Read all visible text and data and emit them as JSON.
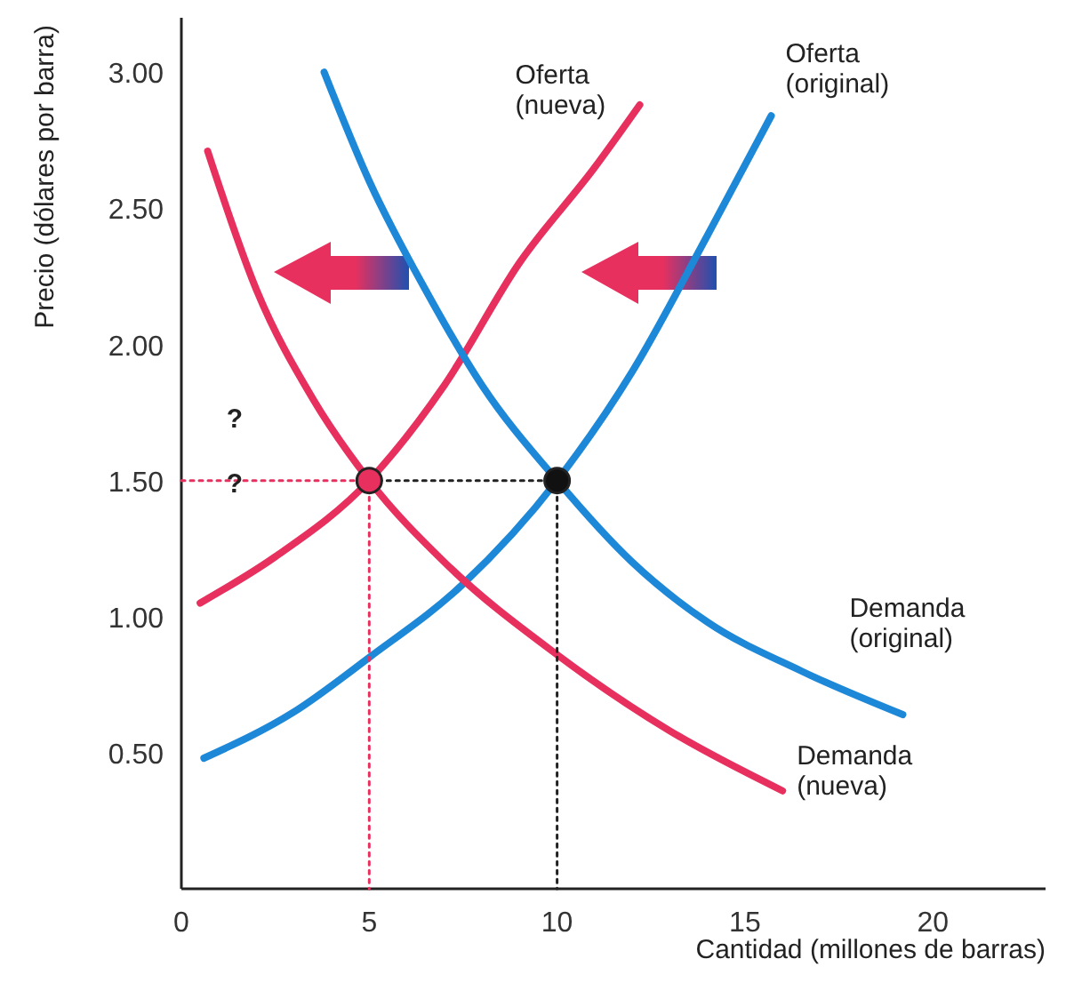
{
  "chart_data": {
    "type": "line",
    "xlabel": "Cantidad (millones de barras)",
    "ylabel": "Precio (dólares por barra)",
    "xlim": [
      0,
      23
    ],
    "ylim": [
      0,
      3.2
    ],
    "xticks": [
      0,
      5,
      10,
      15,
      20
    ],
    "yticks": [
      {
        "value": 0.5,
        "label": "0.50"
      },
      {
        "value": 1,
        "label": "1.00"
      },
      {
        "value": 1.5,
        "label": "1.50"
      },
      {
        "value": 2,
        "label": "2.00"
      },
      {
        "value": 2.5,
        "label": "2.50"
      },
      {
        "value": 3,
        "label": "3.00"
      }
    ],
    "grid": false,
    "series": [
      {
        "name": "Oferta (original)",
        "color": "#1e88d8",
        "x": [
          0.6,
          3,
          5,
          7.5,
          10,
          12,
          14,
          15.7
        ],
        "values": [
          0.48,
          0.65,
          0.85,
          1.12,
          1.5,
          1.9,
          2.4,
          2.84
        ]
      },
      {
        "name": "Oferta (nueva)",
        "color": "#e8305e",
        "x": [
          0.5,
          2.5,
          5,
          7,
          9,
          11,
          12.2
        ],
        "values": [
          1.05,
          1.22,
          1.5,
          1.85,
          2.3,
          2.65,
          2.88
        ]
      },
      {
        "name": "Demanda (original)",
        "color": "#1e88d8",
        "x": [
          3.8,
          5,
          6.5,
          8,
          10,
          12,
          14,
          16.5,
          19.2
        ],
        "values": [
          3.0,
          2.6,
          2.2,
          1.85,
          1.5,
          1.2,
          0.98,
          0.8,
          0.64
        ]
      },
      {
        "name": "Demanda (nueva)",
        "color": "#e8305e",
        "x": [
          0.7,
          2,
          3.5,
          5,
          7,
          10,
          13,
          16
        ],
        "values": [
          2.71,
          2.2,
          1.8,
          1.5,
          1.2,
          0.86,
          0.58,
          0.36
        ]
      },
      {
        "type": "line",
        "line_style": "dotted",
        "color": "#e8305e",
        "x": [
          0,
          5,
          5
        ],
        "values": [
          1.5,
          1.5,
          0
        ]
      },
      {
        "type": "line",
        "line_style": "dotted",
        "color": "#222222",
        "x": [
          5,
          10,
          10
        ],
        "values": [
          1.5,
          1.5,
          0
        ]
      },
      {
        "type": "scatter",
        "marker": "circle",
        "color": "#e8305e",
        "x": [
          5
        ],
        "values": [
          1.5
        ]
      },
      {
        "type": "scatter",
        "marker": "circle",
        "color": "#111111",
        "x": [
          10
        ],
        "values": [
          1.5
        ]
      }
    ],
    "annotations": [
      "?",
      "?"
    ]
  }
}
